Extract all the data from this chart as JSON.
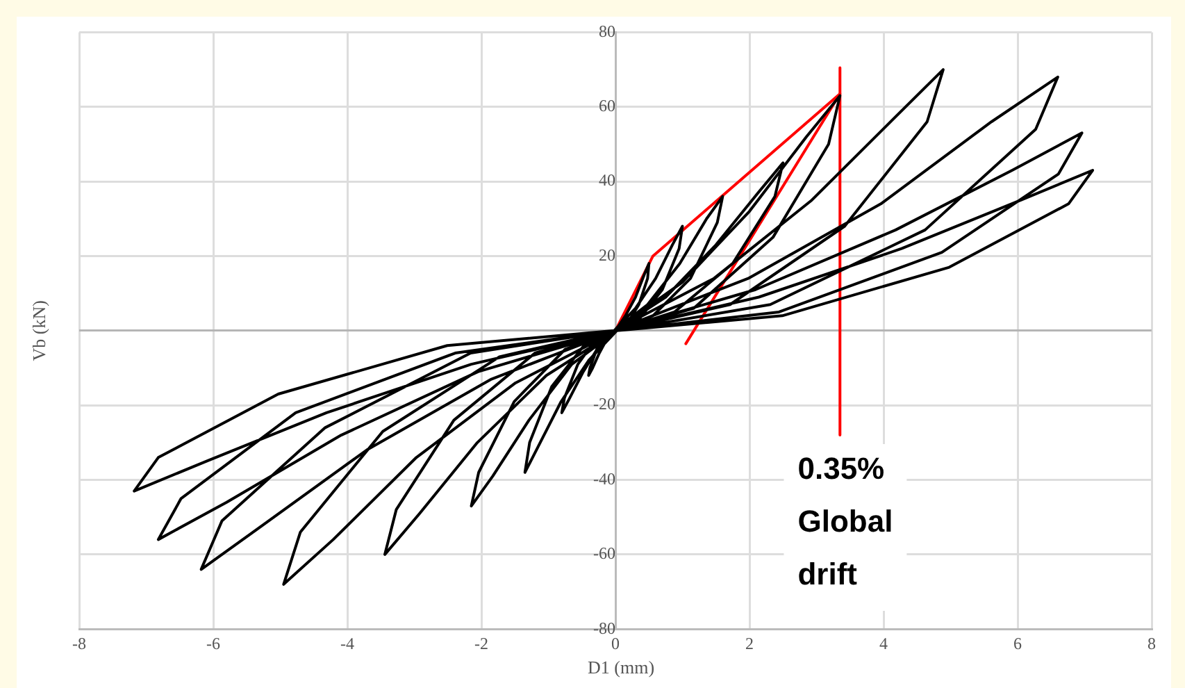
{
  "chart_data": {
    "type": "line",
    "xlabel": "D1 (mm)",
    "ylabel": "Vb (kN)",
    "xlim": [
      -8,
      8
    ],
    "xticks": [
      -8,
      -6,
      -4,
      -2,
      0,
      2,
      4,
      6,
      8
    ],
    "ylim": [
      -80,
      80
    ],
    "yticks": [
      -80,
      -60,
      -40,
      -20,
      {
        "value": 0,
        "label": null
      },
      20,
      40,
      60,
      80
    ],
    "grid": true,
    "legend": false,
    "annotations": [
      "0.35% Global drift"
    ],
    "series": [
      {
        "color": "#000000",
        "x": [
          0,
          0.15,
          0.3,
          0.43,
          0.5,
          0.48,
          0.35,
          0.18,
          0.02,
          -0.12,
          -0.24,
          -0.34,
          -0.4,
          -0.38,
          -0.28,
          -0.14,
          -0.02,
          0.3,
          0.6,
          0.85,
          1.0,
          0.95,
          0.7,
          0.35,
          0.02,
          -0.24,
          -0.48,
          -0.68,
          -0.8,
          -0.76,
          -0.56,
          -0.28,
          -0.02,
          0.48,
          0.96,
          1.36,
          1.6,
          1.52,
          1.12,
          0.56,
          0.02,
          -0.4,
          -0.81,
          -1.15,
          -1.35,
          -1.28,
          -0.95,
          -0.47,
          -0.02,
          0.75,
          1.5,
          2.13,
          2.5,
          2.38,
          1.75,
          0.88,
          0.02,
          -0.65,
          -1.29,
          -1.83,
          -2.15,
          -2.04,
          -1.51,
          -0.75,
          -0.02,
          1.0,
          2.0,
          2.85,
          3.35,
          3.18,
          2.35,
          1.17,
          0.02,
          -1.03,
          -2.06,
          -2.92,
          -3.44,
          -3.27,
          -2.41,
          -1.2,
          -0.02,
          1.47,
          2.93,
          4.16,
          4.89,
          4.65,
          3.42,
          1.71,
          0.02,
          -1.49,
          -2.97,
          -4.21,
          -4.95,
          -4.7,
          -3.47,
          -1.73,
          -0.02,
          1.98,
          3.96,
          5.61,
          6.6,
          6.27,
          4.62,
          2.31,
          0.02,
          -1.85,
          -3.71,
          -5.25,
          -6.18,
          -5.87,
          -4.33,
          -2.16,
          -0.02,
          2.09,
          4.18,
          5.92,
          6.96,
          6.61,
          4.87,
          2.44,
          0.02,
          -2.05,
          -4.09,
          -5.8,
          -6.82,
          -6.48,
          -4.77,
          -2.39,
          -0.02,
          2.14,
          4.27,
          6.05,
          7.12,
          6.76,
          4.98,
          2.49,
          0.02,
          -2.15,
          -4.31,
          -6.1,
          -7.18,
          -6.82,
          -5.03,
          -2.51,
          -0.02
        ],
        "values": [
          0,
          4,
          9,
          15,
          18,
          14,
          7,
          2,
          0,
          -2,
          -6,
          -10,
          -12,
          -10,
          -5,
          -1,
          0,
          6,
          14,
          23,
          28,
          22,
          11,
          3,
          0,
          -4,
          -11,
          -18,
          -22,
          -18,
          -9,
          -2,
          0,
          7,
          18,
          30,
          36,
          29,
          14,
          4,
          0,
          -8,
          -19,
          -31,
          -38,
          -30,
          -15,
          -4,
          0,
          9,
          23,
          37,
          45,
          36,
          18,
          5,
          0,
          -9,
          -24,
          -39,
          -47,
          -38,
          -19,
          -5,
          0,
          13,
          32,
          52,
          63,
          50,
          25,
          6,
          0,
          -12,
          -30,
          -49,
          -60,
          -48,
          -24,
          -6,
          0,
          14,
          35,
          57,
          70,
          56,
          28,
          7,
          0,
          -14,
          -34,
          -56,
          -68,
          -54,
          -27,
          -7,
          0,
          14,
          34,
          56,
          68,
          54,
          27,
          7,
          0,
          -13,
          -32,
          -52,
          -64,
          -51,
          -26,
          -6,
          0,
          11,
          27,
          43,
          53,
          42,
          21,
          5,
          0,
          -11,
          -28,
          -46,
          -56,
          -45,
          -22,
          -6,
          0,
          9,
          22,
          35,
          43,
          34,
          17,
          4,
          0,
          -9,
          -22,
          -35,
          -43,
          -34,
          -17,
          -4,
          0
        ]
      },
      {
        "color": "#ff0000",
        "x": [
          0,
          0.56,
          3.35,
          1.05
        ],
        "values": [
          0,
          20,
          63.5,
          -3.5
        ]
      },
      {
        "color": "#ff0000",
        "x": [
          3.35,
          3.35
        ],
        "values": [
          70.5,
          -28
        ]
      }
    ]
  }
}
